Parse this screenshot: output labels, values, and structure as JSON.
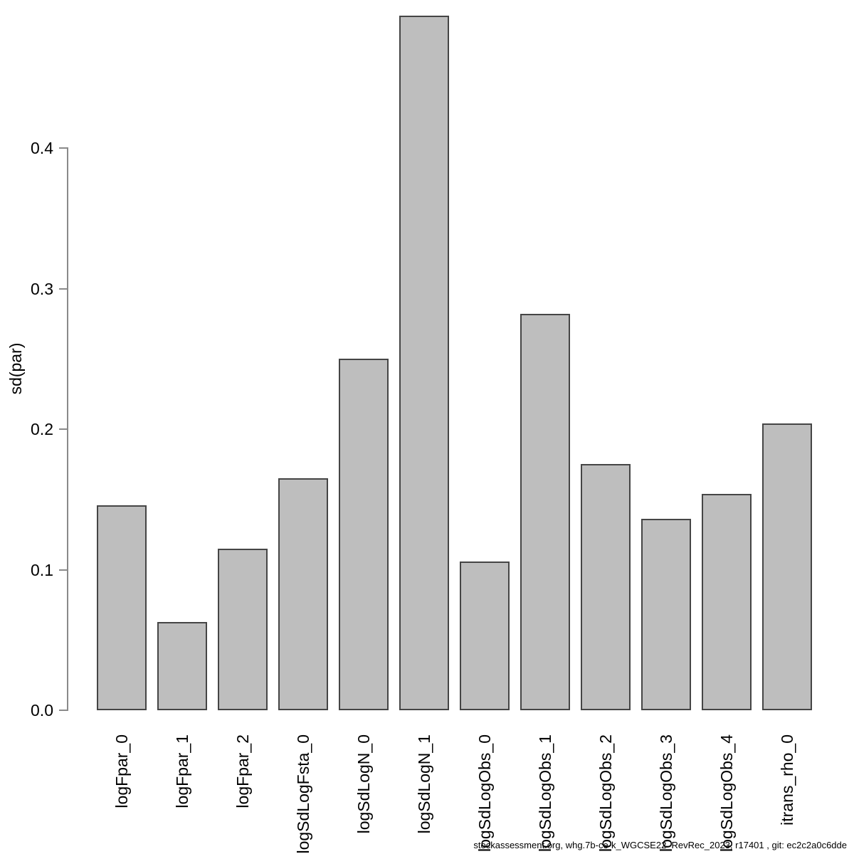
{
  "chart_data": {
    "type": "bar",
    "title": "",
    "xlabel": "",
    "ylabel": "sd(par)",
    "categories": [
      "logFpar_0",
      "logFpar_1",
      "logFpar_2",
      "logSdLogFsta_0",
      "logSdLogN_0",
      "logSdLogN_1",
      "logSdLogObs_0",
      "logSdLogObs_1",
      "logSdLogObs_2",
      "logSdLogObs_3",
      "logSdLogObs_4",
      "itrans_rho_0"
    ],
    "values": [
      0.146,
      0.063,
      0.115,
      0.165,
      0.25,
      0.494,
      0.106,
      0.282,
      0.175,
      0.136,
      0.154,
      0.204
    ],
    "yticks": [
      "0.0",
      "0.1",
      "0.2",
      "0.3",
      "0.4"
    ],
    "ytick_values": [
      0.0,
      0.1,
      0.2,
      0.3,
      0.4
    ],
    "ylim": [
      0.0,
      0.494
    ],
    "grid": false,
    "legend": null,
    "colors": {
      "bar_fill": "#bebebe",
      "bar_border": "#454545",
      "axis": "#8a8a8a",
      "text": "#000000"
    }
  },
  "footer": {
    "text": "stockassessment.org, whg.7b-ce-k_WGCSE22_RevRec_2023, r17401 , git: ec2c2a0c6dde"
  }
}
